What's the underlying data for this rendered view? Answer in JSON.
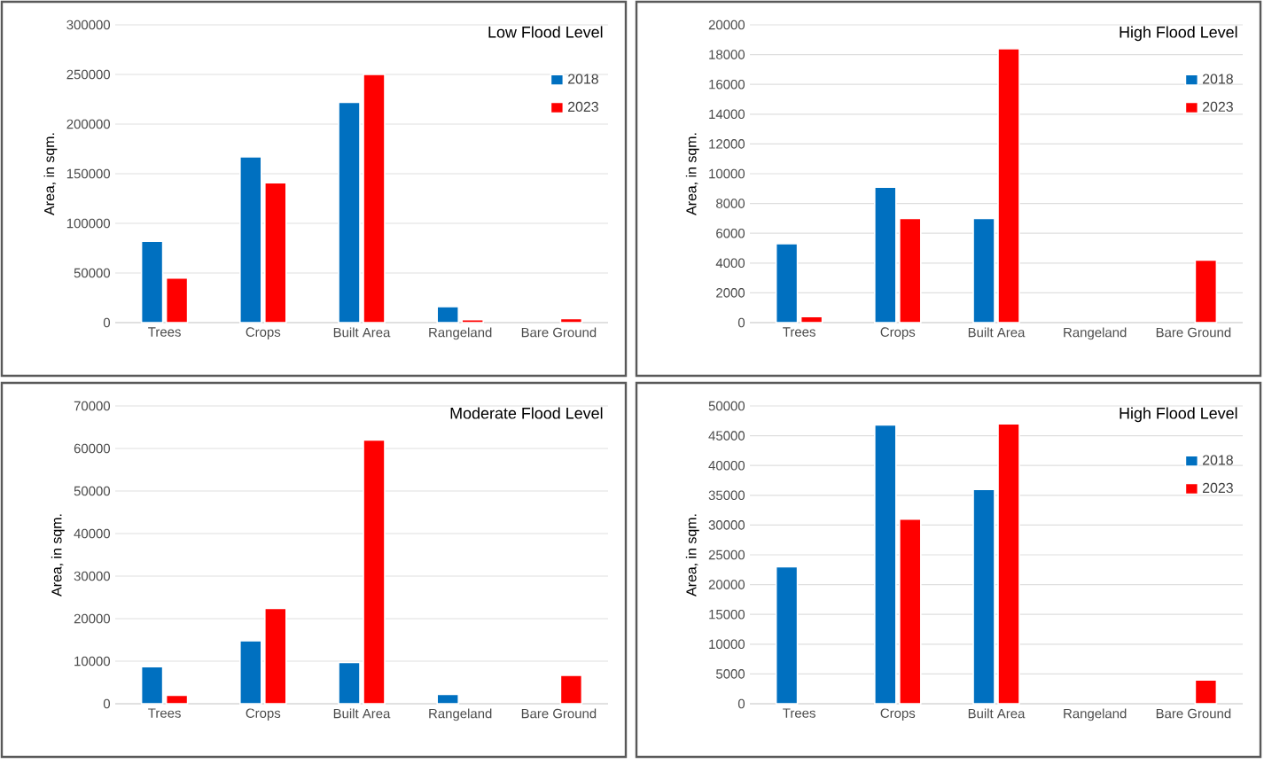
{
  "chart_data": [
    {
      "type": "bar",
      "title": "Low Flood Level",
      "ylabel": "Area, in sqm.",
      "categories": [
        "Trees",
        "Crops",
        "Built Area",
        "Rangeland",
        "Bare Ground"
      ],
      "series": [
        {
          "name": "2018",
          "color": "#0070c0",
          "values": [
            82000,
            167000,
            222000,
            16000,
            null
          ]
        },
        {
          "name": "2023",
          "color": "#ff0000",
          "values": [
            45000,
            141000,
            250000,
            3000,
            4000
          ]
        }
      ],
      "ylim": [
        0,
        300000
      ],
      "yticks": [
        0,
        50000,
        100000,
        150000,
        200000,
        250000,
        300000
      ],
      "grid": "y",
      "legend": "top right"
    },
    {
      "type": "bar",
      "title": "High Flood Level",
      "ylabel": "Area, in sqm.",
      "categories": [
        "Trees",
        "Crops",
        "Built Area",
        "Rangeland",
        "Bare Ground"
      ],
      "series": [
        {
          "name": "2018",
          "color": "#0070c0",
          "values": [
            5300,
            9100,
            7000,
            null,
            null
          ]
        },
        {
          "name": "2023",
          "color": "#ff0000",
          "values": [
            400,
            7000,
            18400,
            null,
            4200
          ]
        }
      ],
      "ylim": [
        0,
        20000
      ],
      "yticks": [
        0,
        2000,
        4000,
        6000,
        8000,
        10000,
        12000,
        14000,
        16000,
        18000,
        20000
      ],
      "grid": "y",
      "legend": "top right"
    },
    {
      "type": "bar",
      "title": "Moderate Flood Level",
      "ylabel": "Area, in sqm.",
      "categories": [
        "Trees",
        "Crops",
        "Built Area",
        "Rangeland",
        "Bare Ground"
      ],
      "series": [
        {
          "color": "#0070c0",
          "values": [
            8700,
            14800,
            9700,
            2200,
            null
          ]
        },
        {
          "color": "#ff0000",
          "values": [
            2000,
            22400,
            62000,
            null,
            6700
          ]
        }
      ],
      "ylim": [
        0,
        70000
      ],
      "yticks": [
        0,
        10000,
        20000,
        30000,
        40000,
        50000,
        60000,
        70000
      ],
      "grid": "y"
    },
    {
      "type": "bar",
      "title": "High Flood Level",
      "ylabel": "Area, in sqm.",
      "categories": [
        "Trees",
        "Crops",
        "Built Area",
        "Rangeland",
        "Bare Ground"
      ],
      "series": [
        {
          "name": "2018",
          "color": "#0070c0",
          "values": [
            23000,
            46800,
            36000,
            null,
            null
          ]
        },
        {
          "name": "2023",
          "color": "#ff0000",
          "values": [
            null,
            31000,
            47000,
            null,
            4000
          ]
        }
      ],
      "ylim": [
        0,
        50000
      ],
      "yticks": [
        0,
        5000,
        10000,
        15000,
        20000,
        25000,
        30000,
        35000,
        40000,
        45000,
        50000
      ],
      "grid": "y",
      "legend": "top right"
    }
  ]
}
